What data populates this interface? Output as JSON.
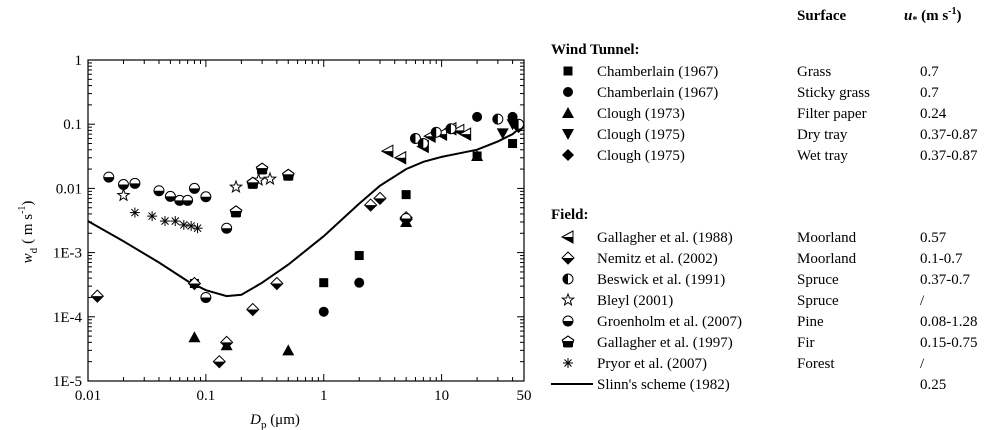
{
  "chart_data": {
    "type": "scatter",
    "xlabel_main": "D",
    "xlabel_sub": "p",
    "xlabel_unit": " (μm)",
    "ylabel_main": "w",
    "ylabel_sub": "d",
    "ylabel_unit": "( m s",
    "ylabel_exp": "-1",
    "ylabel_close": ")",
    "xscale": "log",
    "yscale": "log",
    "xlim": [
      0.01,
      50
    ],
    "ylim": [
      1e-05,
      1
    ],
    "x_ticks": [
      {
        "value": 0.01,
        "label": "0.01"
      },
      {
        "value": 0.1,
        "label": "0.1"
      },
      {
        "value": 1,
        "label": "1"
      },
      {
        "value": 10,
        "label": "10"
      },
      {
        "value": 50,
        "label": "50"
      }
    ],
    "y_ticks": [
      {
        "value": 1,
        "label": "1"
      },
      {
        "value": 0.1,
        "label": "0.1"
      },
      {
        "value": 0.01,
        "label": "0.01"
      },
      {
        "value": 0.001,
        "label": "1E-3"
      },
      {
        "value": 0.0001,
        "label": "1E-4"
      },
      {
        "value": 1e-05,
        "label": "1E-5"
      }
    ],
    "legend_header": {
      "surface": "Surface",
      "ustar_main": "u",
      "ustar_sub": "*",
      "ustar_unit": " (m s",
      "ustar_exp": "-1",
      "ustar_close": ")"
    },
    "groups": [
      {
        "title": "Wind Tunnel:"
      },
      {
        "title": "Field:"
      }
    ],
    "series": [
      {
        "name": "Chamberlain (1967)",
        "surface": "Grass",
        "ustar": "0.7",
        "marker": "square",
        "group": 0,
        "points": [
          [
            0.08,
            0.00033
          ],
          [
            1.0,
            0.00034
          ],
          [
            2.0,
            0.0009
          ],
          [
            5.0,
            0.008
          ],
          [
            20,
            0.032
          ],
          [
            40,
            0.05
          ]
        ]
      },
      {
        "name": "Chamberlain (1967)",
        "surface": "Sticky grass",
        "ustar": "0.7",
        "marker": "circle",
        "group": 0,
        "points": [
          [
            1.0,
            0.00012
          ],
          [
            2.0,
            0.00034
          ],
          [
            5.0,
            0.0034
          ],
          [
            20,
            0.13
          ],
          [
            40,
            0.13
          ]
        ]
      },
      {
        "name": "Clough (1973)",
        "surface": "Filter paper",
        "ustar": "0.24",
        "marker": "triangle-up",
        "group": 0,
        "points": [
          [
            0.08,
            4.8e-05
          ],
          [
            0.15,
            3.6e-05
          ],
          [
            0.5,
            3e-05
          ],
          [
            5.0,
            0.003
          ],
          [
            20,
            0.032
          ]
        ]
      },
      {
        "name": "Clough (1975)",
        "surface": "Dry tray",
        "ustar": "0.37-0.87",
        "marker": "triangle-down",
        "group": 0,
        "points": [
          [
            33,
            0.072
          ],
          [
            40,
            0.1
          ]
        ]
      },
      {
        "name": "Clough (1975)",
        "surface": "Wet tray",
        "ustar": "0.37-0.87",
        "marker": "diamond",
        "group": 0,
        "points": [
          [
            45,
            0.09
          ]
        ]
      },
      {
        "name": "Gallagher et al. (1988)",
        "surface": "Moorland",
        "ustar": "0.57",
        "marker": "triangle-left-half",
        "group": 1,
        "points": [
          [
            3.5,
            0.038
          ],
          [
            4.5,
            0.03
          ],
          [
            7,
            0.045
          ],
          [
            8,
            0.065
          ],
          [
            10,
            0.07
          ],
          [
            12,
            0.085
          ],
          [
            14,
            0.08
          ],
          [
            16,
            0.07
          ]
        ]
      },
      {
        "name": "Nemitz et al. (2002)",
        "surface": "Moorland",
        "ustar": "0.1-0.7",
        "marker": "diamond-half",
        "group": 1,
        "points": [
          [
            0.012,
            0.00021
          ],
          [
            0.08,
            0.00033
          ],
          [
            0.13,
            2e-05
          ],
          [
            0.15,
            4e-05
          ],
          [
            0.25,
            0.00013
          ],
          [
            0.4,
            0.00033
          ],
          [
            2.5,
            0.0055
          ],
          [
            3.0,
            0.007
          ],
          [
            5.0,
            0.0033
          ],
          [
            5.0,
            0.0035
          ]
        ]
      },
      {
        "name": "Beswick et al. (1991)",
        "surface": "Spruce",
        "ustar": "0.37-0.7",
        "marker": "circle-vhalf",
        "group": 1,
        "points": [
          [
            6,
            0.06
          ],
          [
            7,
            0.05
          ],
          [
            9,
            0.075
          ],
          [
            12,
            0.085
          ],
          [
            30,
            0.12
          ],
          [
            45,
            0.1
          ]
        ]
      },
      {
        "name": "Bleyl (2001)",
        "surface": "Spruce",
        "ustar": "/",
        "marker": "star",
        "group": 1,
        "points": [
          [
            0.02,
            0.0078
          ],
          [
            0.18,
            0.0105
          ],
          [
            0.28,
            0.0135
          ],
          [
            0.35,
            0.014
          ]
        ]
      },
      {
        "name": "Groenholm et al. (2007)",
        "surface": "Pine",
        "ustar": "0.08-1.28",
        "marker": "circle-half",
        "group": 1,
        "points": [
          [
            0.015,
            0.015
          ],
          [
            0.02,
            0.0115
          ],
          [
            0.025,
            0.012
          ],
          [
            0.04,
            0.0092
          ],
          [
            0.05,
            0.0075
          ],
          [
            0.06,
            0.0065
          ],
          [
            0.07,
            0.0065
          ],
          [
            0.08,
            0.01
          ],
          [
            0.1,
            0.0074
          ],
          [
            0.1,
            0.0002
          ],
          [
            0.15,
            0.0024
          ],
          [
            5,
            0.0034
          ]
        ]
      },
      {
        "name": "Gallagher et al. (1997)",
        "surface": "Fir",
        "ustar": "0.15-0.75",
        "marker": "pentagon-half",
        "group": 1,
        "points": [
          [
            0.18,
            0.0043
          ],
          [
            0.25,
            0.012
          ],
          [
            0.3,
            0.02
          ],
          [
            0.5,
            0.016
          ]
        ]
      },
      {
        "name": "Pryor et al. (2007)",
        "surface": "Forest",
        "ustar": "/",
        "marker": "asterisk",
        "group": 1,
        "points": [
          [
            0.025,
            0.0042
          ],
          [
            0.035,
            0.0037
          ],
          [
            0.045,
            0.0031
          ],
          [
            0.055,
            0.0031
          ],
          [
            0.065,
            0.0027
          ],
          [
            0.075,
            0.0026
          ],
          [
            0.085,
            0.0024
          ]
        ]
      },
      {
        "name": "Slinn's scheme (1982)",
        "surface": "",
        "ustar": "0.25",
        "marker": "line",
        "group": 2,
        "points": [
          [
            0.01,
            0.0031
          ],
          [
            0.02,
            0.0015
          ],
          [
            0.04,
            0.0007
          ],
          [
            0.07,
            0.00036
          ],
          [
            0.1,
            0.00026
          ],
          [
            0.15,
            0.00021
          ],
          [
            0.2,
            0.00022
          ],
          [
            0.3,
            0.00034
          ],
          [
            0.5,
            0.00065
          ],
          [
            1.0,
            0.0018
          ],
          [
            2.0,
            0.0058
          ],
          [
            3.0,
            0.011
          ],
          [
            5.0,
            0.02
          ],
          [
            7.0,
            0.026
          ],
          [
            10,
            0.031
          ],
          [
            15,
            0.036
          ],
          [
            20,
            0.04
          ],
          [
            30,
            0.054
          ],
          [
            40,
            0.07
          ],
          [
            50,
            0.1
          ]
        ]
      }
    ]
  }
}
